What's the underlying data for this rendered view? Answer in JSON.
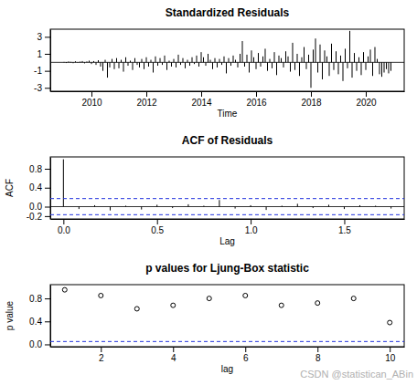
{
  "chart_data": [
    {
      "type": "spike",
      "title": "Standardized Residuals",
      "x_label": "Time",
      "x": [
        2009,
        2009.083,
        2009.167,
        2009.25,
        2009.333,
        2009.417,
        2009.5,
        2009.583,
        2009.667,
        2009.75,
        2009.833,
        2009.917,
        2010,
        2010.083,
        2010.167,
        2010.25,
        2010.333,
        2010.417,
        2010.5,
        2010.583,
        2010.667,
        2010.75,
        2010.833,
        2010.917,
        2011,
        2011.083,
        2011.167,
        2011.25,
        2011.333,
        2011.417,
        2011.5,
        2011.583,
        2011.667,
        2011.75,
        2011.833,
        2011.917,
        2012,
        2012.083,
        2012.167,
        2012.25,
        2012.333,
        2012.417,
        2012.5,
        2012.583,
        2012.667,
        2012.75,
        2012.833,
        2012.917,
        2013,
        2013.083,
        2013.167,
        2013.25,
        2013.333,
        2013.417,
        2013.5,
        2013.583,
        2013.667,
        2013.75,
        2013.833,
        2013.917,
        2014,
        2014.083,
        2014.167,
        2014.25,
        2014.333,
        2014.417,
        2014.5,
        2014.583,
        2014.667,
        2014.75,
        2014.833,
        2014.917,
        2015,
        2015.083,
        2015.167,
        2015.25,
        2015.333,
        2015.417,
        2015.5,
        2015.583,
        2015.667,
        2015.75,
        2015.833,
        2015.917,
        2016,
        2016.083,
        2016.167,
        2016.25,
        2016.333,
        2016.417,
        2016.5,
        2016.583,
        2016.667,
        2016.75,
        2016.833,
        2016.917,
        2017,
        2017.083,
        2017.167,
        2017.25,
        2017.333,
        2017.417,
        2017.5,
        2017.583,
        2017.667,
        2017.75,
        2017.833,
        2017.917,
        2018,
        2018.083,
        2018.167,
        2018.25,
        2018.333,
        2018.417,
        2018.5,
        2018.583,
        2018.667,
        2018.75,
        2018.833,
        2018.917,
        2019,
        2019.083,
        2019.167,
        2019.25,
        2019.333,
        2019.417,
        2019.5,
        2019.583,
        2019.667,
        2019.75,
        2019.833,
        2019.917,
        2020,
        2020.083,
        2020.167,
        2020.25,
        2020.333,
        2020.417,
        2020.5,
        2020.583,
        2020.667,
        2020.75,
        2020.833,
        2020.917
      ],
      "values": [
        0.05,
        -0.08,
        0.1,
        0.06,
        -0.1,
        0.12,
        -0.05,
        0.08,
        0.15,
        -0.12,
        0.1,
        0.2,
        -0.2,
        0.15,
        -0.3,
        0.25,
        -0.5,
        -1.0,
        0.3,
        -1.8,
        -0.6,
        0.4,
        -0.8,
        0.5,
        -0.7,
        0.3,
        -1.1,
        0.6,
        -0.4,
        0.2,
        -0.9,
        0.5,
        -0.3,
        -0.6,
        0.4,
        -0.8,
        0.6,
        -0.5,
        0.3,
        -1.2,
        0.7,
        -0.4,
        0.5,
        -0.3,
        0.8,
        -0.9,
        0.2,
        -0.5,
        0.4,
        -0.6,
        0.9,
        -0.3,
        0.5,
        -0.7,
        0.3,
        -0.4,
        0.6,
        -0.2,
        0.8,
        -0.5,
        1.2,
        0.6,
        -0.4,
        1.0,
        0.3,
        -0.8,
        0.5,
        -0.6,
        0.4,
        -0.3,
        0.7,
        -1.3,
        0.5,
        -0.4,
        0.8,
        0.3,
        -0.6,
        1.0,
        2.5,
        -0.5,
        0.9,
        -1.2,
        1.4,
        0.6,
        -0.8,
        1.1,
        -0.5,
        0.7,
        1.6,
        -1.0,
        0.4,
        -0.7,
        1.2,
        -1.5,
        0.8,
        0.5,
        -0.6,
        1.3,
        0.7,
        -1.1,
        2.3,
        -0.9,
        1.0,
        -1.6,
        0.6,
        1.8,
        -0.8,
        0.9,
        -3.0,
        1.5,
        2.8,
        -1.2,
        2.1,
        -2.0,
        1.4,
        0.7,
        -1.6,
        2.2,
        -0.9,
        1.3,
        -1.4,
        0.8,
        -2.2,
        1.6,
        -0.7,
        3.7,
        -1.8,
        1.1,
        -1.0,
        0.6,
        -1.5,
        1.2,
        -0.9,
        0.7,
        1.5,
        -1.6,
        1.8,
        0.4,
        -1.4,
        -1.7,
        -1.2,
        -0.8,
        -1.3,
        -1.0
      ],
      "xlim": [
        2008.5,
        2021.4
      ],
      "xticks": [
        2010,
        2012,
        2014,
        2016,
        2018,
        2020
      ],
      "ylim": [
        -3.4,
        3.9
      ],
      "yticks": [
        -3,
        -1,
        1,
        3
      ]
    },
    {
      "type": "spike",
      "title": "ACF of Residuals",
      "x_label": "Lag",
      "y_label": "ACF",
      "x": [
        0,
        0.083,
        0.167,
        0.25,
        0.333,
        0.417,
        0.5,
        0.583,
        0.667,
        0.75,
        0.833,
        0.917,
        1,
        1.083,
        1.167,
        1.25,
        1.333,
        1.417,
        1.5,
        1.583,
        1.667,
        1.75
      ],
      "values": [
        1,
        -0.05,
        0.03,
        -0.08,
        0.02,
        -0.06,
        0.04,
        -0.03,
        0.05,
        0.02,
        0.14,
        -0.04,
        0.03,
        -0.07,
        0.02,
        0.06,
        -0.03,
        0.04,
        -0.05,
        0.03,
        0.02,
        -0.04
      ],
      "ci": [
        -0.17,
        0.17
      ],
      "xlim": [
        -0.07,
        1.82
      ],
      "xticks": [
        {
          "value": 0,
          "label": "0.0"
        },
        0.5,
        {
          "value": 1,
          "label": "1.0"
        },
        1.5
      ],
      "ylim": [
        -0.26,
        1.05
      ],
      "yticks": [
        -0.2,
        {
          "value": 0,
          "label": "0.0"
        },
        0.4,
        0.8
      ]
    },
    {
      "type": "scatter",
      "title": "p values for Ljung-Box statistic",
      "x_label": "lag",
      "y_label": "p value",
      "marker": "circle",
      "x": [
        1,
        2,
        3,
        4,
        5,
        6,
        7,
        8,
        9,
        10
      ],
      "values": [
        0.95,
        0.85,
        0.62,
        0.68,
        0.8,
        0.85,
        0.68,
        0.72,
        0.8,
        0.38
      ],
      "threshold": 0.05,
      "xlim": [
        0.6,
        10.4
      ],
      "xticks": [
        2,
        4,
        6,
        8,
        10
      ],
      "ylim": [
        -0.04,
        1.04
      ],
      "yticks": [
        {
          "value": 0,
          "label": "0.0"
        },
        0.4,
        0.8
      ],
      "annotation": "CSDN @statistican_ABin"
    }
  ]
}
